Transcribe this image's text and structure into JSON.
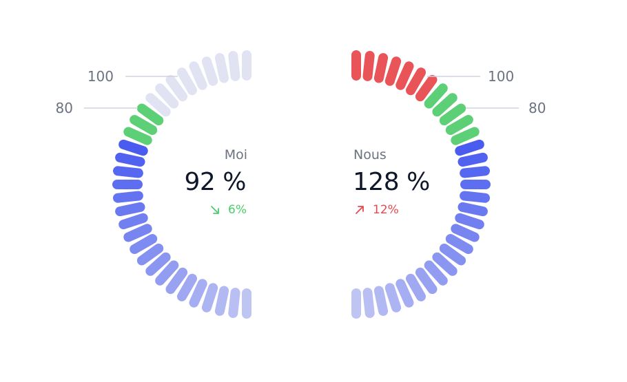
{
  "chart_data": [
    {
      "type": "gauge",
      "name": "Moi",
      "value_percent": 92,
      "value_text": "92 %",
      "delta_text": "6%",
      "delta_direction": "down",
      "delta_color": "#4ccd6c",
      "scale_labels": [
        "80",
        "100"
      ],
      "scale_values": [
        80,
        100
      ],
      "total_segments": 31,
      "side": "left"
    },
    {
      "type": "gauge",
      "name": "Nous",
      "value_percent": 128,
      "value_text": "128 %",
      "delta_text": "12%",
      "delta_direction": "up",
      "delta_color": "#e5484d",
      "scale_labels": [
        "80",
        "100"
      ],
      "scale_values": [
        80,
        100
      ],
      "total_segments": 31,
      "side": "right"
    }
  ],
  "colors": {
    "blue_dark": "#4a5cf0",
    "blue_light": "#bfc5f2",
    "green": "#5dcf77",
    "red": "#e85458",
    "empty": "#e1e3f3",
    "tick_line": "#cfd3dc"
  }
}
